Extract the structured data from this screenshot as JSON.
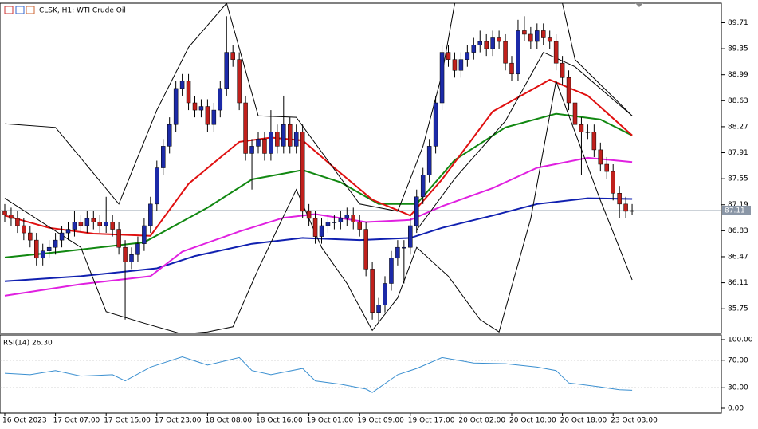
{
  "chart_data": {
    "type": "candlestick",
    "title": "CLSK, H1:  WTI Crude Oil",
    "ylim": [
      85.41,
      89.98
    ],
    "yticks": [
      89.71,
      89.35,
      88.99,
      88.63,
      88.27,
      87.91,
      87.55,
      87.19,
      86.83,
      86.47,
      86.11,
      85.75
    ],
    "last_price": 87.11,
    "xticks": [
      {
        "value": 0,
        "label": "16 Oct 2023"
      },
      {
        "value": 8,
        "label": "17 Oct 07:00"
      },
      {
        "value": 16,
        "label": "17 Oct 15:00"
      },
      {
        "value": 24,
        "label": "17 Oct 23:00"
      },
      {
        "value": 32,
        "label": "18 Oct 08:00"
      },
      {
        "value": 40,
        "label": "18 Oct 16:00"
      },
      {
        "value": 48,
        "label": "19 Oct 01:00"
      },
      {
        "value": 56,
        "label": "19 Oct 09:00"
      },
      {
        "value": 64,
        "label": "19 Oct 17:00"
      },
      {
        "value": 72,
        "label": "20 Oct 02:00"
      },
      {
        "value": 80,
        "label": "20 Oct 10:00"
      },
      {
        "value": 88,
        "label": "20 Oct 18:00"
      },
      {
        "value": 96,
        "label": "23 Oct 03:00"
      }
    ],
    "up_color": "#1c2aa8",
    "down_color": "#c0201c",
    "open": [
      87.1,
      87.05,
      87.0,
      86.9,
      86.8,
      86.7,
      86.45,
      86.55,
      86.6,
      86.7,
      86.8,
      86.85,
      86.95,
      86.9,
      87.0,
      86.95,
      86.9,
      86.95,
      86.85,
      86.6,
      86.4,
      86.5,
      86.65,
      86.9,
      87.2,
      87.7,
      88.0,
      88.3,
      88.8,
      88.9,
      88.6,
      88.5,
      88.55,
      88.3,
      88.5,
      88.8,
      89.3,
      89.2,
      88.6,
      87.9,
      88.0,
      88.1,
      87.9,
      88.2,
      88.0,
      88.3,
      88.0,
      88.2,
      87.1,
      87.0,
      86.75,
      86.9,
      86.95,
      86.95,
      87.0,
      87.05,
      86.95,
      86.85,
      86.3,
      85.7,
      85.8,
      86.1,
      86.45,
      86.6,
      86.6,
      86.9,
      87.3,
      87.6,
      88.0,
      88.6,
      89.3,
      89.2,
      89.05,
      89.2,
      89.3,
      89.4,
      89.45,
      89.35,
      89.5,
      89.45,
      89.15,
      89.0,
      89.6,
      89.55,
      89.45,
      89.6,
      89.5,
      89.45,
      89.15,
      88.95,
      88.6,
      88.3,
      88.2,
      88.2,
      87.95,
      87.75,
      87.65,
      87.35,
      87.2,
      87.1
    ],
    "high": [
      87.2,
      87.15,
      87.1,
      87.0,
      86.9,
      86.8,
      86.65,
      86.7,
      86.8,
      86.9,
      86.95,
      87.1,
      87.05,
      87.1,
      87.1,
      87.05,
      87.3,
      87.05,
      86.95,
      86.7,
      86.6,
      86.75,
      87.0,
      87.3,
      87.8,
      88.1,
      88.4,
      88.9,
      89.0,
      89.0,
      88.7,
      88.65,
      88.65,
      88.6,
      88.9,
      89.8,
      89.4,
      89.3,
      88.7,
      88.1,
      88.2,
      88.2,
      88.5,
      88.3,
      88.7,
      88.4,
      88.3,
      88.3,
      87.2,
      87.1,
      87.0,
      87.05,
      87.05,
      87.1,
      87.15,
      87.15,
      87.05,
      86.95,
      86.4,
      85.9,
      86.2,
      86.55,
      86.7,
      86.7,
      87.0,
      87.4,
      87.7,
      88.1,
      88.7,
      89.4,
      89.4,
      89.3,
      89.3,
      89.4,
      89.5,
      89.6,
      89.55,
      89.6,
      89.6,
      89.55,
      89.25,
      89.75,
      89.8,
      89.65,
      89.7,
      89.7,
      89.6,
      89.55,
      89.25,
      89.05,
      88.7,
      88.4,
      88.3,
      88.3,
      88.05,
      87.85,
      87.75,
      87.45,
      87.3,
      87.2
    ],
    "low": [
      86.95,
      86.9,
      86.8,
      86.7,
      86.6,
      86.35,
      86.35,
      86.45,
      86.5,
      86.6,
      86.7,
      86.75,
      86.8,
      86.8,
      86.85,
      86.8,
      86.8,
      86.75,
      86.5,
      85.6,
      86.3,
      86.4,
      86.55,
      86.8,
      87.1,
      87.6,
      87.9,
      88.2,
      88.7,
      88.5,
      88.4,
      88.4,
      88.2,
      88.2,
      88.4,
      88.7,
      89.1,
      88.5,
      87.8,
      87.4,
      87.9,
      87.8,
      87.8,
      87.9,
      87.9,
      87.9,
      87.9,
      87.0,
      86.9,
      86.65,
      86.65,
      86.8,
      86.85,
      86.85,
      86.9,
      86.85,
      86.75,
      86.2,
      85.6,
      85.55,
      85.7,
      86.0,
      86.35,
      86.1,
      86.5,
      86.8,
      87.2,
      87.5,
      87.9,
      88.5,
      89.1,
      88.95,
      88.95,
      89.1,
      89.2,
      89.3,
      89.25,
      89.25,
      89.35,
      89.05,
      88.9,
      88.9,
      89.45,
      89.35,
      89.35,
      89.4,
      89.35,
      89.05,
      88.85,
      88.5,
      88.2,
      87.6,
      88.1,
      87.85,
      87.65,
      87.55,
      87.25,
      87.0,
      87.0,
      87.05
    ],
    "close": [
      87.05,
      87.0,
      86.9,
      86.8,
      86.7,
      86.45,
      86.55,
      86.6,
      86.7,
      86.8,
      86.85,
      86.95,
      86.9,
      87.0,
      86.95,
      86.9,
      86.95,
      86.85,
      86.6,
      86.4,
      86.5,
      86.65,
      86.9,
      87.2,
      87.7,
      88.0,
      88.3,
      88.8,
      88.9,
      88.6,
      88.5,
      88.55,
      88.3,
      88.5,
      88.8,
      89.3,
      89.2,
      88.6,
      87.9,
      88.0,
      88.1,
      87.9,
      88.2,
      88.0,
      88.3,
      88.0,
      88.2,
      87.1,
      87.0,
      86.75,
      86.9,
      86.95,
      86.95,
      87.0,
      87.05,
      86.95,
      86.85,
      86.3,
      85.7,
      85.8,
      86.1,
      86.45,
      86.6,
      86.6,
      86.9,
      87.3,
      87.6,
      88.0,
      88.6,
      89.3,
      89.2,
      89.05,
      89.2,
      89.3,
      89.4,
      89.45,
      89.35,
      89.5,
      89.45,
      89.15,
      89.0,
      89.6,
      89.55,
      89.45,
      89.6,
      89.5,
      89.45,
      89.15,
      88.95,
      88.6,
      88.3,
      88.2,
      88.2,
      87.95,
      87.75,
      87.65,
      87.35,
      87.2,
      87.1,
      87.11
    ],
    "series": [
      {
        "color": "#1020b0",
        "width": 2,
        "x": [
          0,
          12,
          24,
          30,
          39,
          47,
          56,
          64,
          69,
          77,
          84,
          92,
          99
        ],
        "values": [
          86.13,
          86.2,
          86.31,
          86.48,
          86.65,
          86.73,
          86.7,
          86.73,
          86.87,
          87.04,
          87.2,
          87.28,
          87.27
        ]
      },
      {
        "color": "#e020e0",
        "width": 2,
        "x": [
          0,
          12,
          23,
          28,
          37,
          44,
          49,
          57,
          64,
          69,
          77,
          84,
          92,
          99
        ],
        "values": [
          85.93,
          86.09,
          86.2,
          86.54,
          86.82,
          87.01,
          87.06,
          86.95,
          86.98,
          87.17,
          87.42,
          87.7,
          87.84,
          87.78
        ]
      },
      {
        "color": "#118811",
        "width": 2,
        "x": [
          0,
          9,
          22,
          32,
          39,
          47,
          53,
          59,
          65,
          71,
          79,
          87,
          94,
          99
        ],
        "values": [
          86.46,
          86.54,
          86.67,
          87.15,
          87.54,
          87.67,
          87.5,
          87.2,
          87.2,
          87.81,
          88.26,
          88.45,
          88.37,
          88.15
        ]
      },
      {
        "color": "#e01010",
        "width": 2,
        "x": [
          0,
          7,
          14,
          23,
          29,
          37,
          42,
          47,
          52,
          58,
          64,
          69,
          77,
          86,
          92,
          99
        ],
        "values": [
          87.04,
          86.87,
          86.79,
          86.76,
          87.48,
          88.06,
          88.12,
          88.08,
          87.7,
          87.26,
          87.04,
          87.54,
          88.48,
          88.92,
          88.7,
          88.15
        ]
      },
      {
        "color": "#000000",
        "width": 1,
        "x": [
          0,
          8,
          18,
          24,
          29,
          35,
          40,
          46,
          51,
          56,
          62,
          66,
          69,
          71,
          88,
          90,
          99
        ],
        "values": [
          88.31,
          88.26,
          87.2,
          88.5,
          89.37,
          89.98,
          88.42,
          88.4,
          87.8,
          87.2,
          87.1,
          88.0,
          89.0,
          89.98,
          89.98,
          89.2,
          88.42
        ]
      },
      {
        "color": "#000000",
        "width": 1,
        "x": [
          0,
          12,
          16,
          22,
          28,
          32,
          36,
          40,
          46,
          50,
          54,
          58,
          62,
          65,
          70,
          75,
          78,
          83,
          87,
          94,
          99
        ],
        "values": [
          87.28,
          86.6,
          85.71,
          85.55,
          85.4,
          85.43,
          85.5,
          86.3,
          87.4,
          86.6,
          86.1,
          85.45,
          85.9,
          86.6,
          86.2,
          85.6,
          85.43,
          87.0,
          88.9,
          87.25,
          86.15
        ]
      },
      {
        "color": "#000000",
        "width": 1,
        "x": [
          65,
          71,
          79,
          85,
          90,
          99
        ],
        "values": [
          86.84,
          87.55,
          88.35,
          89.3,
          89.1,
          88.42
        ]
      }
    ],
    "rsi": {
      "label": "RSI(14) 26.30",
      "color": "#3a8fd0",
      "ylim": [
        0,
        100
      ],
      "yticks": [
        {
          "value": 100,
          "label": "100.00"
        },
        {
          "value": 70,
          "label": "70.00"
        },
        {
          "value": 30,
          "label": "30.00"
        },
        {
          "value": 0,
          "label": "0.00"
        }
      ],
      "levels": [
        70,
        30
      ],
      "x": [
        0,
        4,
        8,
        12,
        17,
        19,
        23,
        28,
        32,
        37,
        39,
        42,
        47,
        49,
        53,
        57,
        58,
        62,
        65,
        69,
        74,
        79,
        84,
        87,
        89,
        94,
        97,
        99
      ],
      "values": [
        51,
        49,
        55,
        47,
        49,
        40,
        60,
        75,
        63,
        74,
        55,
        49,
        58,
        40,
        35,
        28,
        23,
        49,
        58,
        74,
        66,
        65,
        60,
        55,
        37,
        31,
        27,
        26.3
      ]
    }
  }
}
